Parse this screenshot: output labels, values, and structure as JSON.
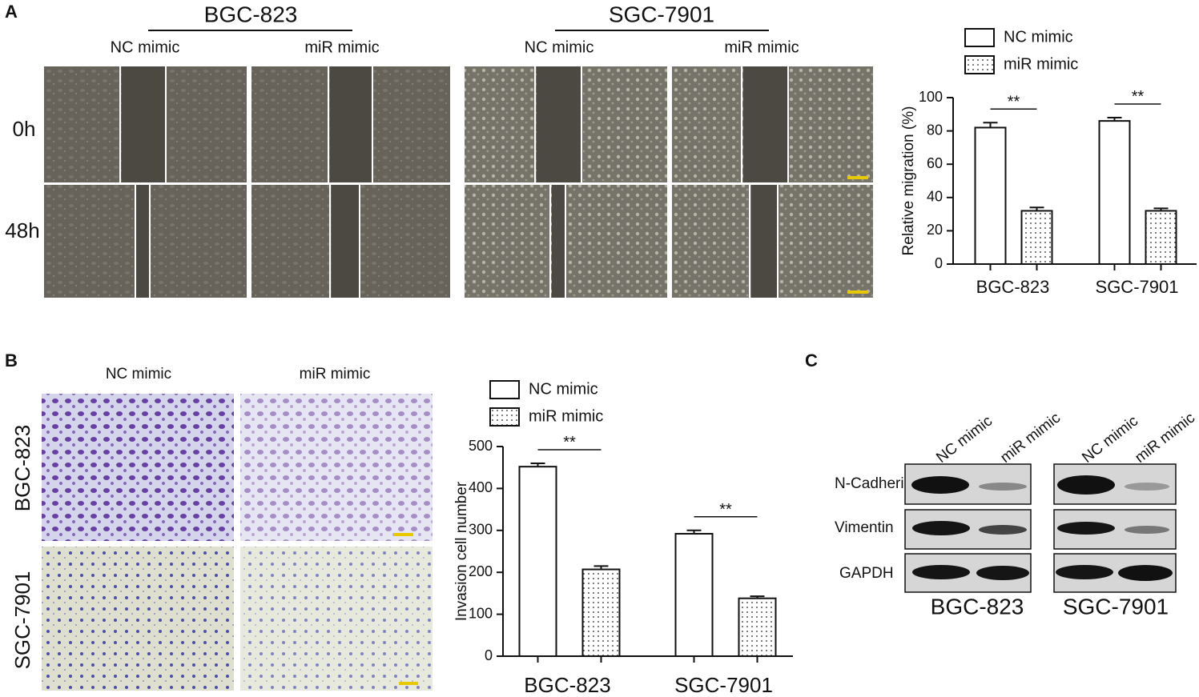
{
  "figure": {
    "panel_labels": [
      "A",
      "B",
      "C"
    ],
    "A": {
      "cell_lines": [
        "BGC-823",
        "SGC-7901"
      ],
      "conditions": [
        "NC mimic",
        "miR mimic",
        "NC mimic",
        "miR mimic"
      ],
      "timepoints": [
        "0h",
        "48h"
      ]
    },
    "B": {
      "conditions": [
        "NC mimic",
        "miR mimic"
      ],
      "cell_lines": [
        "BGC-823",
        "SGC-7901"
      ]
    },
    "C": {
      "conditions": [
        "NC mimic",
        "miR mimic",
        "NC mimic",
        "miR mimic"
      ],
      "proteins": [
        "N-Cadherin",
        "Vimentin",
        "GAPDH"
      ],
      "cell_lines": [
        "BGC-823",
        "SGC-7901"
      ]
    }
  },
  "chart_data": [
    {
      "type": "bar",
      "ylabel": "Relative migration (%)",
      "categories": [
        "BGC-823",
        "SGC-7901"
      ],
      "series": [
        {
          "name": "NC mimic",
          "color": "#ffffff",
          "values": [
            82,
            86
          ],
          "errors": [
            3,
            2
          ]
        },
        {
          "name": "miR mimic",
          "color": "#ffffff",
          "pattern": "dots",
          "values": [
            32,
            32
          ],
          "errors": [
            2,
            1.5
          ]
        }
      ],
      "annotations": [
        "**",
        "**"
      ],
      "ylim": [
        0,
        100
      ],
      "yticks": [
        0,
        20,
        40,
        60,
        80,
        100
      ]
    },
    {
      "type": "bar",
      "ylabel": "Invasion cell number",
      "categories": [
        "BGC-823",
        "SGC-7901"
      ],
      "series": [
        {
          "name": "NC mimic",
          "color": "#ffffff",
          "values": [
            452,
            292
          ],
          "errors": [
            8,
            8
          ]
        },
        {
          "name": "miR mimic",
          "color": "#ffffff",
          "pattern": "dots",
          "values": [
            207,
            138
          ],
          "errors": [
            8,
            5
          ]
        }
      ],
      "annotations": [
        "**",
        "**"
      ],
      "ylim": [
        0,
        500
      ],
      "yticks": [
        0,
        100,
        200,
        300,
        400,
        500
      ]
    }
  ]
}
